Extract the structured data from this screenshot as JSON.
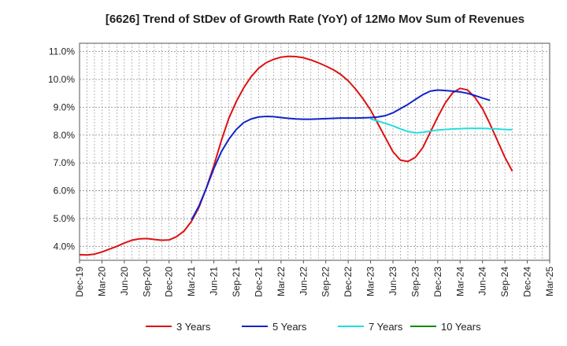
{
  "chart_data": {
    "type": "line",
    "title": "[6626]  Trend of StDev of Growth Rate (YoY) of 12Mo Mov Sum of Revenues",
    "xlabel": "",
    "ylabel": "",
    "ylim": [
      3.5,
      11.3
    ],
    "yticks": [
      4.0,
      5.0,
      6.0,
      7.0,
      8.0,
      9.0,
      10.0,
      11.0
    ],
    "ytick_labels": [
      "4.0%",
      "5.0%",
      "6.0%",
      "7.0%",
      "8.0%",
      "9.0%",
      "10.0%",
      "11.0%"
    ],
    "xticks": [
      "Dec-19",
      "Mar-20",
      "Jun-20",
      "Sep-20",
      "Dec-20",
      "Mar-21",
      "Jun-21",
      "Sep-21",
      "Dec-21",
      "Mar-22",
      "Jun-22",
      "Sep-22",
      "Dec-22",
      "Mar-23",
      "Jun-23",
      "Sep-23",
      "Dec-23",
      "Mar-24",
      "Jun-24",
      "Sep-24",
      "Dec-24",
      "Mar-25"
    ],
    "grid": true,
    "legend_position": "bottom",
    "series": [
      {
        "name": "3 Years",
        "color": "#dd1111",
        "start_index": 0,
        "values": [
          3.7,
          3.69,
          3.72,
          3.8,
          3.9,
          4.0,
          4.12,
          4.22,
          4.27,
          4.28,
          4.25,
          4.22,
          4.23,
          4.35,
          4.55,
          4.9,
          5.4,
          6.1,
          6.9,
          7.8,
          8.6,
          9.2,
          9.7,
          10.1,
          10.4,
          10.6,
          10.72,
          10.8,
          10.83,
          10.82,
          10.78,
          10.7,
          10.6,
          10.48,
          10.35,
          10.18,
          9.95,
          9.65,
          9.3,
          8.9,
          8.4,
          7.9,
          7.4,
          7.1,
          7.05,
          7.2,
          7.55,
          8.1,
          8.65,
          9.15,
          9.52,
          9.68,
          9.62,
          9.35,
          8.95,
          8.4,
          7.8,
          7.2,
          6.7
        ]
      },
      {
        "name": "5 Years",
        "color": "#1122cc",
        "start_index": 15,
        "values": [
          4.95,
          5.45,
          6.1,
          6.8,
          7.4,
          7.85,
          8.2,
          8.45,
          8.58,
          8.65,
          8.67,
          8.66,
          8.63,
          8.6,
          8.58,
          8.57,
          8.57,
          8.58,
          8.59,
          8.6,
          8.61,
          8.61,
          8.61,
          8.62,
          8.63,
          8.65,
          8.7,
          8.8,
          8.95,
          9.1,
          9.28,
          9.45,
          9.58,
          9.62,
          9.6,
          9.58,
          9.55,
          9.5,
          9.42,
          9.33,
          9.25
        ]
      },
      {
        "name": "7 Years",
        "color": "#22dddd",
        "start_index": 39,
        "values": [
          8.58,
          8.5,
          8.42,
          8.33,
          8.22,
          8.13,
          8.08,
          8.1,
          8.14,
          8.18,
          8.2,
          8.22,
          8.23,
          8.24,
          8.24,
          8.24,
          8.23,
          8.22,
          8.2,
          8.2
        ]
      },
      {
        "name": "10 Years",
        "color": "#118811",
        "start_index": 0,
        "values": []
      }
    ]
  }
}
